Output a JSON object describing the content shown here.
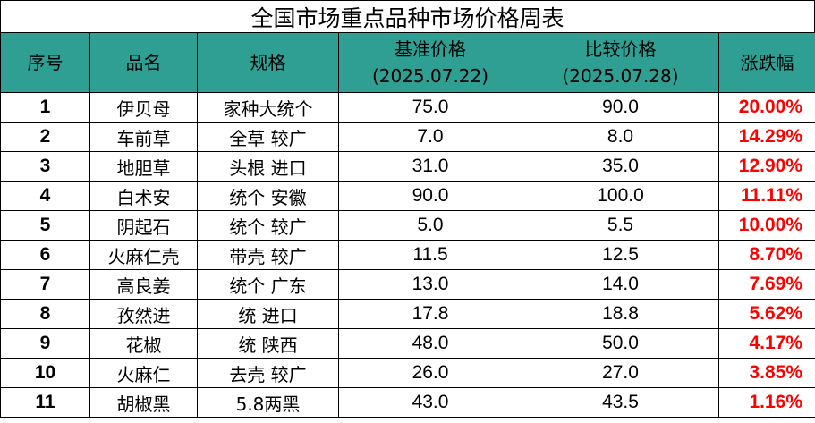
{
  "title": "全国市场重点品种市场价格周表",
  "headers": {
    "index": "序号",
    "name": "品名",
    "spec": "规格",
    "base_price": "基准价格",
    "base_date": "(2025.07.22)",
    "compare_price": "比较价格",
    "compare_date": "(2025.07.28)",
    "change": "涨跌幅"
  },
  "rows": [
    {
      "index": "1",
      "name": "伊贝母",
      "spec": "家种大统个",
      "base": "75.0",
      "compare": "90.0",
      "change": "20.00%"
    },
    {
      "index": "2",
      "name": "车前草",
      "spec": "全草 较广",
      "base": "7.0",
      "compare": "8.0",
      "change": "14.29%"
    },
    {
      "index": "3",
      "name": "地胆草",
      "spec": "头根 进口",
      "base": "31.0",
      "compare": "35.0",
      "change": "12.90%"
    },
    {
      "index": "4",
      "name": "白术安",
      "spec": "统个 安徽",
      "base": "90.0",
      "compare": "100.0",
      "change": "11.11%"
    },
    {
      "index": "5",
      "name": "阴起石",
      "spec": "统个 较广",
      "base": "5.0",
      "compare": "5.5",
      "change": "10.00%"
    },
    {
      "index": "6",
      "name": "火麻仁壳",
      "spec": "带壳 较广",
      "base": "11.5",
      "compare": "12.5",
      "change": "8.70%"
    },
    {
      "index": "7",
      "name": "高良姜",
      "spec": "统个 广东",
      "base": "13.0",
      "compare": "14.0",
      "change": "7.69%"
    },
    {
      "index": "8",
      "name": "孜然进",
      "spec": "统 进口",
      "base": "17.8",
      "compare": "18.8",
      "change": "5.62%"
    },
    {
      "index": "9",
      "name": "花椒",
      "spec": "统 陕西",
      "base": "48.0",
      "compare": "50.0",
      "change": "4.17%"
    },
    {
      "index": "10",
      "name": "火麻仁",
      "spec": "去壳 较广",
      "base": "26.0",
      "compare": "27.0",
      "change": "3.85%"
    },
    {
      "index": "11",
      "name": "胡椒黑",
      "spec": "5.8两黑",
      "base": "43.0",
      "compare": "43.5",
      "change": "1.16%"
    }
  ]
}
